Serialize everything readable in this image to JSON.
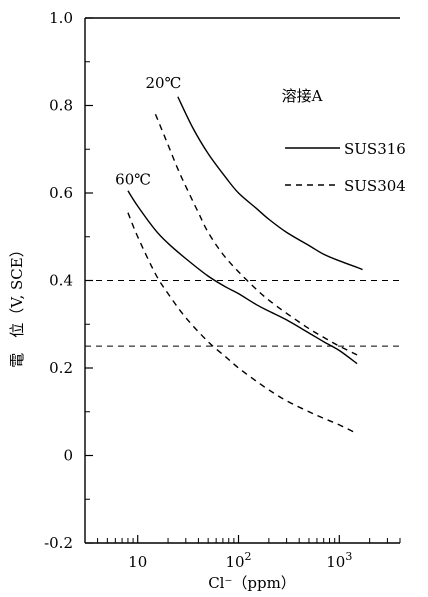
{
  "chart_data": {
    "type": "line",
    "title": "",
    "annotation_text": "溶接A",
    "xlabel": "Cl⁻（ppm）",
    "ylabel": "電　位（V, SCE）",
    "x_scale": "log",
    "xlim": [
      3,
      4000
    ],
    "ylim": [
      -0.2,
      1.0
    ],
    "x_ticks": [
      {
        "value": 10,
        "label": "10",
        "sup": ""
      },
      {
        "value": 100,
        "label": "10",
        "sup": "2"
      },
      {
        "value": 1000,
        "label": "10",
        "sup": "3"
      }
    ],
    "y_ticks": [
      {
        "value": -0.2,
        "label": "-0.2"
      },
      {
        "value": 0,
        "label": "0"
      },
      {
        "value": 0.2,
        "label": "0.2"
      },
      {
        "value": 0.4,
        "label": "0.4"
      },
      {
        "value": 0.6,
        "label": "0.6"
      },
      {
        "value": 0.8,
        "label": "0.8"
      },
      {
        "value": 1.0,
        "label": "1.0"
      }
    ],
    "grid": false,
    "legend_position": "top-right",
    "legend": [
      {
        "label": "SUS316",
        "style": "solid"
      },
      {
        "label": "SUS304",
        "style": "dashed"
      }
    ],
    "curve_labels": [
      {
        "text": "20℃",
        "x": 18,
        "y": 0.84
      },
      {
        "text": "60℃",
        "x": 9.0,
        "y": 0.62
      }
    ],
    "series": [
      {
        "style": "solid",
        "temperature": "20℃",
        "x": [
          25,
          35,
          50,
          75,
          100,
          150,
          200,
          300,
          500,
          700,
          1000,
          1500,
          1700
        ],
        "y": [
          0.82,
          0.75,
          0.69,
          0.635,
          0.6,
          0.565,
          0.54,
          0.51,
          0.48,
          0.46,
          0.445,
          0.43,
          0.425
        ]
      },
      {
        "style": "dashed",
        "temperature": "20℃",
        "x": [
          15,
          20,
          25,
          30,
          40,
          50,
          70,
          100,
          150,
          200,
          300,
          500,
          700,
          1000,
          1500
        ],
        "y": [
          0.78,
          0.71,
          0.655,
          0.615,
          0.555,
          0.51,
          0.46,
          0.42,
          0.38,
          0.355,
          0.325,
          0.29,
          0.27,
          0.25,
          0.23
        ]
      },
      {
        "style": "solid",
        "temperature": "60℃",
        "x": [
          8,
          10,
          15,
          20,
          30,
          50,
          75,
          100,
          150,
          200,
          300,
          500,
          700,
          1000,
          1500
        ],
        "y": [
          0.605,
          0.57,
          0.515,
          0.485,
          0.45,
          0.41,
          0.385,
          0.37,
          0.345,
          0.33,
          0.31,
          0.28,
          0.26,
          0.24,
          0.21
        ]
      },
      {
        "style": "dashed",
        "temperature": "60℃",
        "x": [
          8,
          10,
          15,
          20,
          30,
          50,
          75,
          100,
          150,
          200,
          300,
          500,
          700,
          1000,
          1500
        ],
        "y": [
          0.555,
          0.5,
          0.415,
          0.37,
          0.315,
          0.26,
          0.225,
          0.2,
          0.17,
          0.15,
          0.125,
          0.1,
          0.085,
          0.07,
          0.05
        ]
      }
    ],
    "reference_lines": [
      {
        "orientation": "horizontal",
        "y": 0.4,
        "style": "dashed"
      },
      {
        "orientation": "horizontal",
        "y": 0.25,
        "style": "dashed"
      }
    ]
  }
}
